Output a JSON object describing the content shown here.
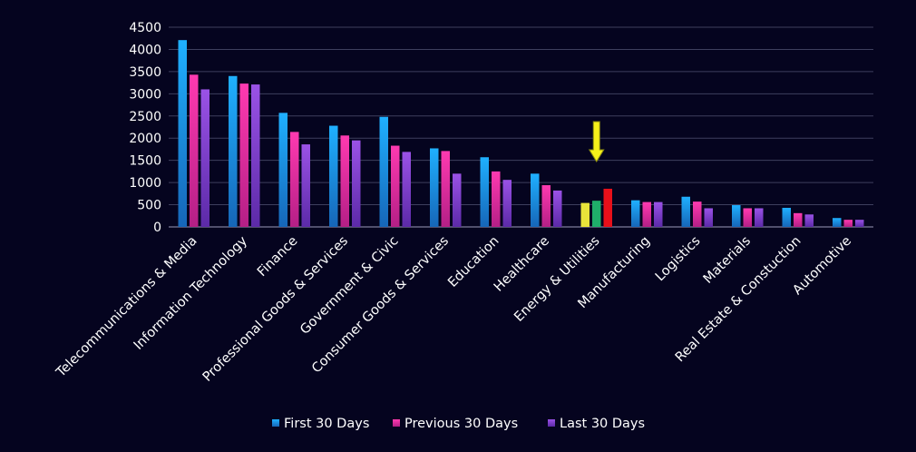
{
  "chart_data": {
    "type": "bar",
    "categories": [
      "Telecommunications & Media",
      "Information Technology",
      "Finance",
      "Professional Goods & Services",
      "Government & Civic",
      "Consumer Goods &  Services",
      "Education",
      "Healthcare",
      "Energy & Utilities",
      "Manufacturing",
      "Logistics",
      "Materials",
      "Real Estate & Constuction",
      "Automotive"
    ],
    "series": [
      {
        "name": "First 30 Days",
        "color": "#1fa3f0",
        "values": [
          4210,
          3400,
          2570,
          2280,
          2480,
          1770,
          1570,
          1200,
          540,
          600,
          680,
          490,
          430,
          200
        ]
      },
      {
        "name": "Previous 30 Days",
        "color": "#ef2fa0",
        "values": [
          3430,
          3230,
          2140,
          2060,
          1830,
          1710,
          1250,
          940,
          590,
          560,
          570,
          420,
          310,
          160
        ]
      },
      {
        "name": "Last 30 Days",
        "color": "#8b46d8",
        "values": [
          3100,
          3210,
          1860,
          1950,
          1690,
          1200,
          1060,
          820,
          860,
          560,
          420,
          420,
          280,
          160
        ]
      }
    ],
    "highlight": {
      "category_index": 8,
      "bar_colors": [
        "#e8e43a",
        "#1fae6a",
        "#e8101a"
      ],
      "arrow_color": "#f6f01a"
    },
    "ylim": [
      0,
      4500
    ],
    "yticks": [
      0,
      500,
      1000,
      1500,
      2000,
      2500,
      3000,
      3500,
      4000,
      4500
    ],
    "grid": true,
    "legend_position": "bottom",
    "title": "",
    "xlabel": "",
    "ylabel": ""
  }
}
